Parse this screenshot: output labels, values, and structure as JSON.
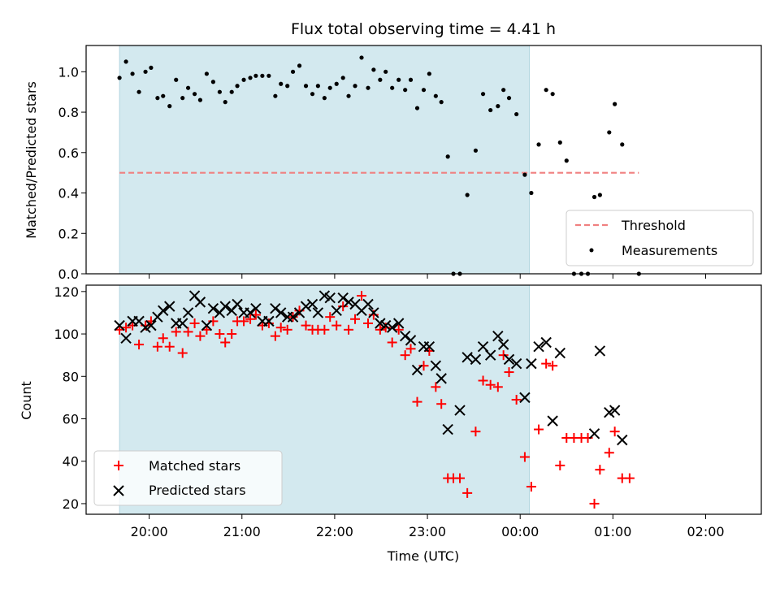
{
  "chart_data": {
    "title": "Flux total observing time = 4.41 h",
    "xlabel": "Time (UTC)",
    "x_unit": "hours, elapsed from 20:00 UTC; 4.0 = 00:00, 6.0 = 02:00",
    "x_ticks": [
      0,
      1,
      2,
      3,
      4,
      5,
      6
    ],
    "x_tick_labels": [
      "20:00",
      "21:00",
      "22:00",
      "23:00",
      "00:00",
      "01:00",
      "02:00"
    ],
    "xlim": [
      -0.68,
      6.6
    ],
    "shaded_span": [
      -0.32,
      4.1
    ],
    "shade_color": "#d3e9ef",
    "panels": [
      {
        "type": "scatter",
        "ylabel": "Matched/Predicted stars",
        "ylim": [
          0,
          1.13
        ],
        "y_ticks": [
          0.0,
          0.2,
          0.4,
          0.6,
          0.8,
          1.0
        ],
        "y_tick_labels": [
          "0.0",
          "0.2",
          "0.4",
          "0.6",
          "0.8",
          "1.0"
        ],
        "legend_position": "lower-right",
        "threshold": {
          "name": "Threshold",
          "value": 0.5,
          "x_range": [
            -0.32,
            5.28
          ],
          "color": "#f08080"
        },
        "series": [
          {
            "name": "Measurements",
            "color": "#000000",
            "points": [
              [
                -0.32,
                0.97
              ],
              [
                -0.25,
                1.05
              ],
              [
                -0.18,
                0.99
              ],
              [
                -0.11,
                0.9
              ],
              [
                -0.04,
                1.0
              ],
              [
                0.02,
                1.02
              ],
              [
                0.09,
                0.87
              ],
              [
                0.15,
                0.88
              ],
              [
                0.22,
                0.83
              ],
              [
                0.29,
                0.96
              ],
              [
                0.36,
                0.87
              ],
              [
                0.42,
                0.92
              ],
              [
                0.49,
                0.89
              ],
              [
                0.55,
                0.86
              ],
              [
                0.62,
                0.99
              ],
              [
                0.69,
                0.95
              ],
              [
                0.76,
                0.9
              ],
              [
                0.82,
                0.85
              ],
              [
                0.89,
                0.9
              ],
              [
                0.95,
                0.93
              ],
              [
                1.02,
                0.96
              ],
              [
                1.09,
                0.97
              ],
              [
                1.15,
                0.98
              ],
              [
                1.22,
                0.98
              ],
              [
                1.29,
                0.98
              ],
              [
                1.36,
                0.88
              ],
              [
                1.42,
                0.94
              ],
              [
                1.49,
                0.93
              ],
              [
                1.55,
                1.0
              ],
              [
                1.62,
                1.03
              ],
              [
                1.69,
                0.93
              ],
              [
                1.76,
                0.89
              ],
              [
                1.82,
                0.93
              ],
              [
                1.89,
                0.87
              ],
              [
                1.95,
                0.92
              ],
              [
                2.02,
                0.94
              ],
              [
                2.09,
                0.97
              ],
              [
                2.15,
                0.88
              ],
              [
                2.22,
                0.93
              ],
              [
                2.29,
                1.07
              ],
              [
                2.36,
                0.92
              ],
              [
                2.42,
                1.01
              ],
              [
                2.49,
                0.96
              ],
              [
                2.55,
                1.0
              ],
              [
                2.62,
                0.92
              ],
              [
                2.69,
                0.96
              ],
              [
                2.76,
                0.91
              ],
              [
                2.82,
                0.96
              ],
              [
                2.89,
                0.82
              ],
              [
                2.96,
                0.91
              ],
              [
                3.02,
                0.99
              ],
              [
                3.09,
                0.88
              ],
              [
                3.15,
                0.85
              ],
              [
                3.22,
                0.58
              ],
              [
                3.28,
                0.0
              ],
              [
                3.35,
                0.0
              ],
              [
                3.43,
                0.39
              ],
              [
                3.52,
                0.61
              ],
              [
                3.6,
                0.89
              ],
              [
                3.68,
                0.81
              ],
              [
                3.76,
                0.83
              ],
              [
                3.82,
                0.91
              ],
              [
                3.88,
                0.87
              ],
              [
                3.96,
                0.79
              ],
              [
                4.05,
                0.49
              ],
              [
                4.12,
                0.4
              ],
              [
                4.2,
                0.64
              ],
              [
                4.28,
                0.91
              ],
              [
                4.35,
                0.89
              ],
              [
                4.43,
                0.65
              ],
              [
                4.5,
                0.56
              ],
              [
                4.58,
                0.0
              ],
              [
                4.66,
                0.0
              ],
              [
                4.73,
                0.0
              ],
              [
                4.8,
                0.38
              ],
              [
                4.86,
                0.39
              ],
              [
                4.96,
                0.7
              ],
              [
                5.02,
                0.84
              ],
              [
                5.1,
                0.64
              ],
              [
                5.28,
                0.0
              ]
            ]
          }
        ]
      },
      {
        "type": "scatter",
        "ylabel": "Count",
        "ylim": [
          15,
          123
        ],
        "y_ticks": [
          20,
          40,
          60,
          80,
          100,
          120
        ],
        "y_tick_labels": [
          "20",
          "40",
          "60",
          "80",
          "100",
          "120"
        ],
        "legend_position": "lower-left",
        "series": [
          {
            "name": "Matched stars",
            "marker": "plus",
            "color": "#ff0000",
            "points": [
              [
                -0.32,
                102
              ],
              [
                -0.25,
                103
              ],
              [
                -0.18,
                104
              ],
              [
                -0.11,
                95
              ],
              [
                -0.04,
                104
              ],
              [
                0.02,
                106
              ],
              [
                0.09,
                94
              ],
              [
                0.15,
                98
              ],
              [
                0.22,
                94
              ],
              [
                0.29,
                101
              ],
              [
                0.36,
                91
              ],
              [
                0.42,
                101
              ],
              [
                0.49,
                105
              ],
              [
                0.55,
                99
              ],
              [
                0.62,
                102
              ],
              [
                0.69,
                106
              ],
              [
                0.76,
                100
              ],
              [
                0.82,
                96
              ],
              [
                0.89,
                100
              ],
              [
                0.95,
                106
              ],
              [
                1.02,
                106
              ],
              [
                1.09,
                107
              ],
              [
                1.15,
                109
              ],
              [
                1.22,
                104
              ],
              [
                1.29,
                105
              ],
              [
                1.36,
                99
              ],
              [
                1.42,
                103
              ],
              [
                1.49,
                102
              ],
              [
                1.55,
                108
              ],
              [
                1.62,
                111
              ],
              [
                1.69,
                104
              ],
              [
                1.76,
                102
              ],
              [
                1.82,
                102
              ],
              [
                1.89,
                102
              ],
              [
                1.95,
                108
              ],
              [
                2.02,
                104
              ],
              [
                2.09,
                113
              ],
              [
                2.15,
                102
              ],
              [
                2.22,
                107
              ],
              [
                2.29,
                118
              ],
              [
                2.36,
                105
              ],
              [
                2.42,
                109
              ],
              [
                2.49,
                102
              ],
              [
                2.55,
                103
              ],
              [
                2.62,
                96
              ],
              [
                2.69,
                102
              ],
              [
                2.76,
                90
              ],
              [
                2.82,
                93
              ],
              [
                2.89,
                68
              ],
              [
                2.96,
                85
              ],
              [
                3.02,
                92
              ],
              [
                3.09,
                75
              ],
              [
                3.15,
                67
              ],
              [
                3.22,
                32
              ],
              [
                3.28,
                32
              ],
              [
                3.35,
                32
              ],
              [
                3.43,
                25
              ],
              [
                3.52,
                54
              ],
              [
                3.6,
                78
              ],
              [
                3.68,
                76
              ],
              [
                3.76,
                75
              ],
              [
                3.82,
                90
              ],
              [
                3.88,
                82
              ],
              [
                3.96,
                69
              ],
              [
                4.05,
                42
              ],
              [
                4.12,
                28
              ],
              [
                4.2,
                55
              ],
              [
                4.28,
                86
              ],
              [
                4.35,
                85
              ],
              [
                4.43,
                38
              ],
              [
                4.5,
                51
              ],
              [
                4.58,
                51
              ],
              [
                4.66,
                51
              ],
              [
                4.73,
                51
              ],
              [
                4.8,
                20
              ],
              [
                4.86,
                36
              ],
              [
                4.96,
                44
              ],
              [
                5.02,
                54
              ],
              [
                5.1,
                32
              ],
              [
                5.18,
                32
              ]
            ]
          },
          {
            "name": "Predicted stars",
            "marker": "x",
            "color": "#000000",
            "points": [
              [
                -0.32,
                104
              ],
              [
                -0.25,
                98
              ],
              [
                -0.18,
                106
              ],
              [
                -0.11,
                106
              ],
              [
                -0.04,
                103
              ],
              [
                0.02,
                104
              ],
              [
                0.09,
                108
              ],
              [
                0.15,
                111
              ],
              [
                0.22,
                113
              ],
              [
                0.29,
                105
              ],
              [
                0.36,
                105
              ],
              [
                0.42,
                110
              ],
              [
                0.49,
                118
              ],
              [
                0.55,
                115
              ],
              [
                0.62,
                104
              ],
              [
                0.69,
                112
              ],
              [
                0.76,
                110
              ],
              [
                0.82,
                113
              ],
              [
                0.89,
                111
              ],
              [
                0.95,
                114
              ],
              [
                1.02,
                110
              ],
              [
                1.09,
                110
              ],
              [
                1.15,
                112
              ],
              [
                1.22,
                106
              ],
              [
                1.29,
                106
              ],
              [
                1.36,
                112
              ],
              [
                1.42,
                110
              ],
              [
                1.49,
                108
              ],
              [
                1.55,
                108
              ],
              [
                1.62,
                110
              ],
              [
                1.69,
                113
              ],
              [
                1.76,
                114
              ],
              [
                1.82,
                110
              ],
              [
                1.89,
                118
              ],
              [
                1.95,
                117
              ],
              [
                2.02,
                111
              ],
              [
                2.09,
                117
              ],
              [
                2.15,
                115
              ],
              [
                2.22,
                114
              ],
              [
                2.29,
                111
              ],
              [
                2.36,
                114
              ],
              [
                2.42,
                110
              ],
              [
                2.49,
                105
              ],
              [
                2.55,
                104
              ],
              [
                2.62,
                103
              ],
              [
                2.69,
                105
              ],
              [
                2.76,
                99
              ],
              [
                2.82,
                97
              ],
              [
                2.89,
                83
              ],
              [
                2.96,
                94
              ],
              [
                3.02,
                94
              ],
              [
                3.09,
                85
              ],
              [
                3.15,
                79
              ],
              [
                3.22,
                55
              ],
              [
                3.35,
                64
              ],
              [
                3.43,
                89
              ],
              [
                3.52,
                88
              ],
              [
                3.6,
                94
              ],
              [
                3.68,
                90
              ],
              [
                3.76,
                99
              ],
              [
                3.82,
                95
              ],
              [
                3.88,
                88
              ],
              [
                3.96,
                86
              ],
              [
                4.05,
                70
              ],
              [
                4.12,
                86
              ],
              [
                4.2,
                94
              ],
              [
                4.28,
                96
              ],
              [
                4.35,
                59
              ],
              [
                4.43,
                91
              ],
              [
                4.8,
                53
              ],
              [
                4.86,
                92
              ],
              [
                4.96,
                63
              ],
              [
                5.02,
                64
              ],
              [
                5.1,
                50
              ]
            ]
          }
        ]
      }
    ]
  }
}
